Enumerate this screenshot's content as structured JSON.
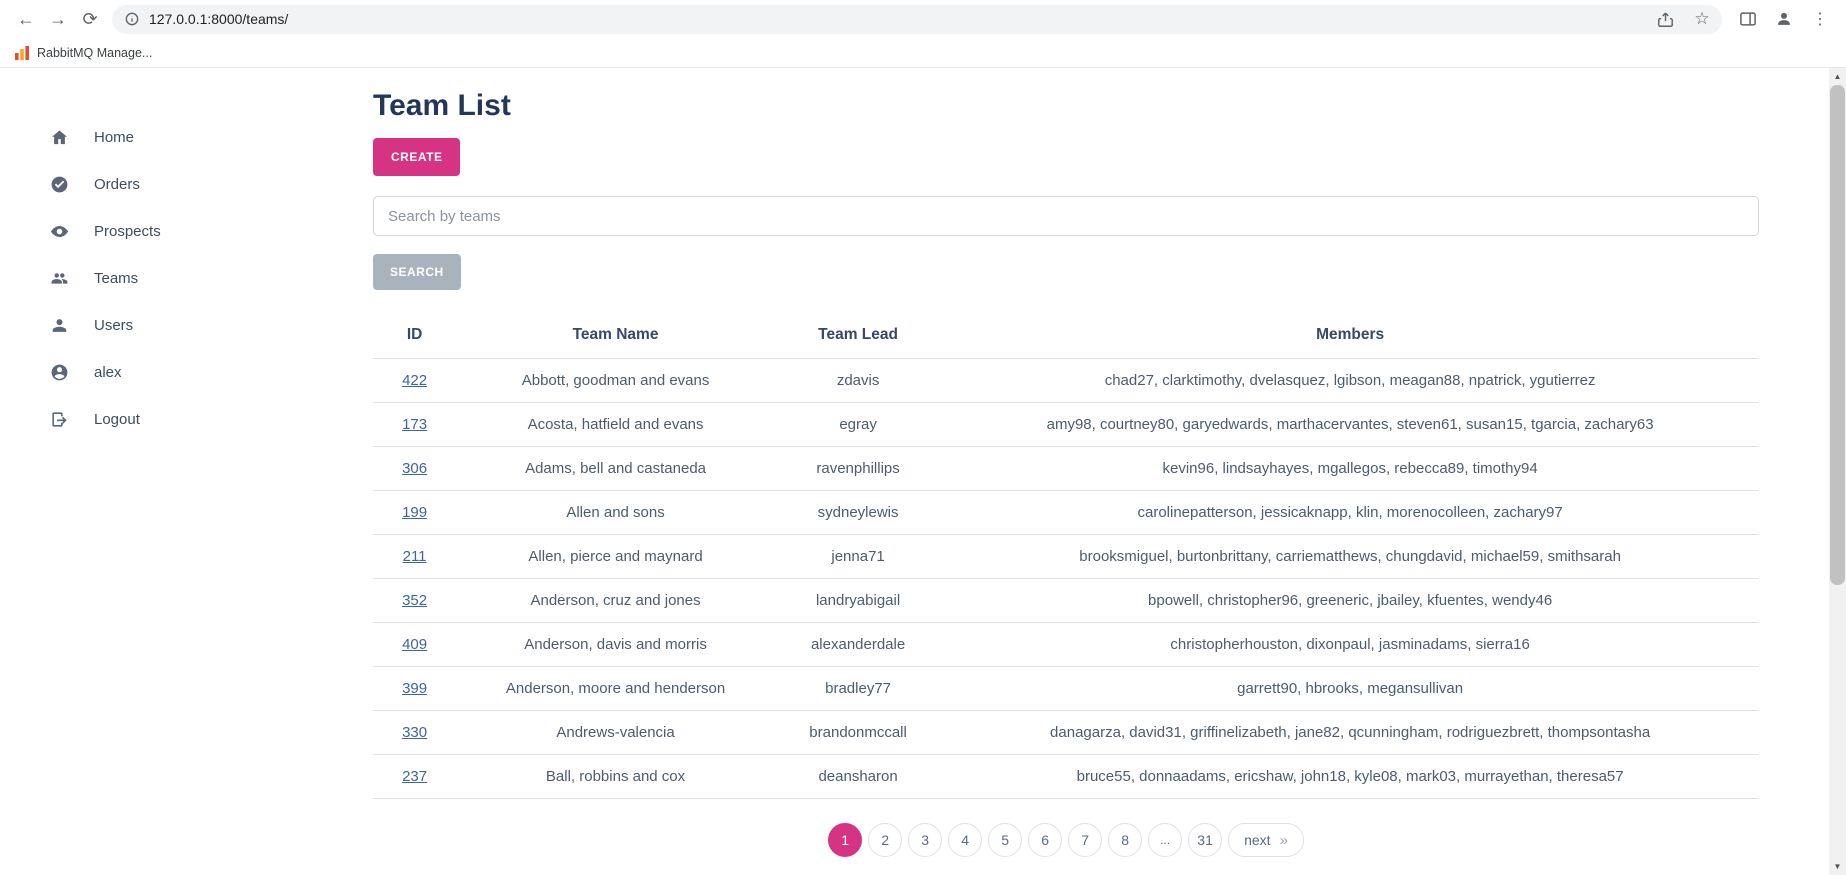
{
  "colors": {
    "accent": "#d63384",
    "link": "#3e63a3",
    "heading": "#24375a",
    "search_button": "#a9b3bd"
  },
  "browser": {
    "url": "127.0.0.1:8000/teams/",
    "bookmark_label": "RabbitMQ Manage..."
  },
  "sidebar": {
    "items": [
      {
        "label": "Home",
        "icon": "home-icon"
      },
      {
        "label": "Orders",
        "icon": "check-circle-icon"
      },
      {
        "label": "Prospects",
        "icon": "eye-icon"
      },
      {
        "label": "Teams",
        "icon": "people-icon"
      },
      {
        "label": "Users",
        "icon": "person-icon"
      },
      {
        "label": "alex",
        "icon": "person-circle-icon"
      },
      {
        "label": "Logout",
        "icon": "logout-icon"
      }
    ]
  },
  "main": {
    "title": "Team List",
    "create_label": "CREATE",
    "search_placeholder": "Search by teams",
    "search_label": "SEARCH",
    "table": {
      "headers": [
        "ID",
        "Team Name",
        "Team Lead",
        "Members"
      ],
      "rows": [
        {
          "id": "422",
          "name": "Abbott, goodman and evans",
          "lead": "zdavis",
          "members": "chad27, clarktimothy, dvelasquez, lgibson, meagan88, npatrick, ygutierrez"
        },
        {
          "id": "173",
          "name": "Acosta, hatfield and evans",
          "lead": "egray",
          "members": "amy98, courtney80, garyedwards, marthacervantes, steven61, susan15, tgarcia, zachary63"
        },
        {
          "id": "306",
          "name": "Adams, bell and castaneda",
          "lead": "ravenphillips",
          "members": "kevin96, lindsayhayes, mgallegos, rebecca89, timothy94"
        },
        {
          "id": "199",
          "name": "Allen and sons",
          "lead": "sydneylewis",
          "members": "carolinepatterson, jessicaknapp, klin, morenocolleen, zachary97"
        },
        {
          "id": "211",
          "name": "Allen, pierce and maynard",
          "lead": "jenna71",
          "members": "brooksmiguel, burtonbrittany, carriematthews, chungdavid, michael59, smithsarah"
        },
        {
          "id": "352",
          "name": "Anderson, cruz and jones",
          "lead": "landryabigail",
          "members": "bpowell, christopher96, greeneric, jbailey, kfuentes, wendy46"
        },
        {
          "id": "409",
          "name": "Anderson, davis and morris",
          "lead": "alexanderdale",
          "members": "christopherhouston, dixonpaul, jasminadams, sierra16"
        },
        {
          "id": "399",
          "name": "Anderson, moore and henderson",
          "lead": "bradley77",
          "members": "garrett90, hbrooks, megansullivan"
        },
        {
          "id": "330",
          "name": "Andrews-valencia",
          "lead": "brandonmccall",
          "members": "danagarza, david31, griffinelizabeth, jane82, qcunningham, rodriguezbrett, thompsontasha"
        },
        {
          "id": "237",
          "name": "Ball, robbins and cox",
          "lead": "deansharon",
          "members": "bruce55, donnaadams, ericshaw, john18, kyle08, mark03, murrayethan, theresa57"
        }
      ]
    },
    "pagination": {
      "pages": [
        "1",
        "2",
        "3",
        "4",
        "5",
        "6",
        "7",
        "8",
        "...",
        "31"
      ],
      "active": "1",
      "next_label": "next",
      "next_arrow": "»"
    }
  }
}
